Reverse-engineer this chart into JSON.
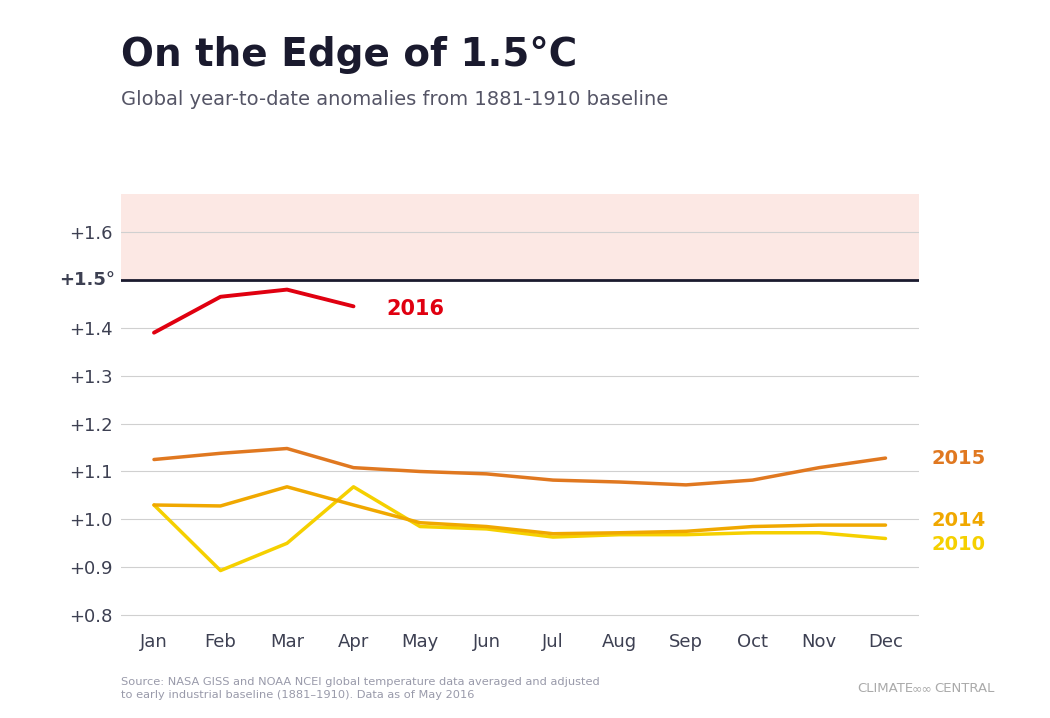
{
  "title": "On the Edge of 1.5°C",
  "subtitle": "Global year-to-date anomalies from 1881-1910 baseline",
  "source_text": "Source: NASA GISS and NOAA NCEI global temperature data averaged and adjusted\nto early industrial baseline (1881–1910). Data as of May 2016",
  "months": [
    "Jan",
    "Feb",
    "Mar",
    "Apr",
    "May",
    "Jun",
    "Jul",
    "Aug",
    "Sep",
    "Oct",
    "Nov",
    "Dec"
  ],
  "ylim": [
    0.78,
    1.68
  ],
  "yticks": [
    0.8,
    0.9,
    1.0,
    1.1,
    1.2,
    1.3,
    1.4,
    1.5,
    1.6
  ],
  "ytick_labels": [
    "+0.8",
    "+0.9",
    "+1.0",
    "+1.1",
    "+1.2",
    "+1.3",
    "+1.4",
    "",
    "+1.6"
  ],
  "threshold_line": 1.5,
  "threshold_label": "+1.5°",
  "background_color": "#ffffff",
  "shading_color": "#fce8e4",
  "series_2016_data": [
    1.39,
    1.465,
    1.48,
    1.445,
    null,
    null,
    null,
    null,
    null,
    null,
    null,
    null
  ],
  "series_2016_color": "#e00010",
  "series_2015_data": [
    1.125,
    1.138,
    1.148,
    1.108,
    1.1,
    1.095,
    1.082,
    1.078,
    1.072,
    1.082,
    1.108,
    1.128
  ],
  "series_2015_color": "#e07820",
  "series_2014_data": [
    1.03,
    1.028,
    1.068,
    1.03,
    0.993,
    0.985,
    0.97,
    0.972,
    0.975,
    0.985,
    0.988,
    0.988
  ],
  "series_2014_color": "#f0a800",
  "series_2010_data": [
    1.03,
    0.893,
    0.95,
    1.068,
    0.985,
    0.98,
    0.963,
    0.968,
    0.968,
    0.972,
    0.972,
    0.96
  ],
  "series_2010_color": "#f5d000",
  "linewidth_2016": 2.8,
  "linewidth_others": 2.5,
  "title_fontsize": 28,
  "subtitle_fontsize": 14,
  "tick_fontsize": 13,
  "tick_color": "#3d4052",
  "grid_color": "#d0d0d0",
  "title_color": "#1a1a2e",
  "subtitle_color": "#555566",
  "source_color": "#999aaa",
  "label_2016_color": "#e00010",
  "label_2015_color": "#e07820",
  "label_2014_color": "#f0a800",
  "label_2010_color": "#f5d000"
}
